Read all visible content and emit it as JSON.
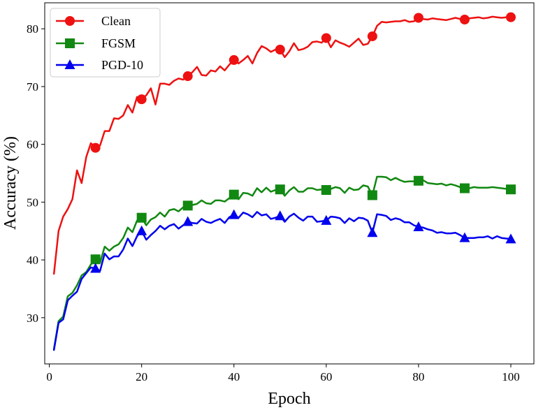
{
  "chart_data": {
    "type": "line",
    "xlabel": "Epoch",
    "ylabel": "Accuracy (%)",
    "xlim": [
      -1,
      105
    ],
    "ylim": [
      22.0,
      84.5
    ],
    "xticks": [
      "0",
      "20",
      "40",
      "60",
      "80",
      "100"
    ],
    "yticks": [
      "30",
      "40",
      "50",
      "60",
      "70",
      "80"
    ],
    "grid": false,
    "legend": "top-left",
    "series": [
      {
        "name": "Clean",
        "color": "#ee1111",
        "marker": "circle",
        "x": [
          1,
          2,
          3,
          4,
          5,
          6,
          7,
          8,
          9,
          10,
          11,
          12,
          13,
          14,
          15,
          16,
          17,
          18,
          19,
          20,
          21,
          22,
          23,
          24,
          25,
          26,
          27,
          28,
          29,
          30,
          31,
          32,
          33,
          34,
          35,
          36,
          37,
          38,
          39,
          40,
          41,
          42,
          43,
          44,
          45,
          46,
          47,
          48,
          49,
          50,
          51,
          52,
          53,
          54,
          55,
          56,
          57,
          58,
          59,
          60,
          61,
          62,
          63,
          64,
          65,
          66,
          67,
          68,
          69,
          70,
          71,
          72,
          73,
          74,
          75,
          76,
          77,
          78,
          79,
          80,
          81,
          82,
          83,
          84,
          85,
          86,
          87,
          88,
          89,
          90,
          91,
          92,
          93,
          94,
          95,
          96,
          97,
          98,
          99,
          100
        ],
        "values": [
          37.6,
          45.0,
          47.5,
          48.8,
          50.5,
          55.5,
          53.3,
          57.8,
          60.2,
          59.4,
          59.8,
          62.3,
          62.3,
          64.5,
          64.4,
          65.0,
          66.8,
          65.5,
          68.2,
          67.8,
          68.5,
          69.7,
          66.9,
          70.5,
          70.5,
          70.3,
          71.0,
          71.4,
          71.2,
          71.8,
          72.5,
          73.4,
          72.0,
          71.9,
          72.8,
          72.6,
          73.5,
          72.8,
          73.8,
          74.6,
          74.0,
          74.6,
          75.3,
          74.0,
          75.8,
          77.0,
          76.6,
          76.0,
          76.4,
          76.4,
          75.1,
          76.1,
          77.5,
          76.3,
          76.5,
          76.9,
          77.7,
          77.8,
          77.6,
          78.4,
          76.8,
          78.0,
          77.6,
          77.3,
          76.9,
          77.6,
          78.3,
          77.2,
          77.4,
          78.7,
          80.5,
          81.2,
          81.1,
          81.2,
          81.3,
          81.3,
          81.5,
          81.2,
          81.3,
          81.9,
          81.7,
          81.6,
          81.8,
          81.7,
          81.6,
          81.5,
          81.7,
          81.9,
          81.7,
          81.6,
          81.8,
          81.9,
          82.0,
          81.8,
          81.9,
          82.1,
          82.0,
          81.9,
          82.0,
          82.0
        ]
      },
      {
        "name": "FGSM",
        "color": "#118811",
        "marker": "square",
        "x": [
          1,
          2,
          3,
          4,
          5,
          6,
          7,
          8,
          9,
          10,
          11,
          12,
          13,
          14,
          15,
          16,
          17,
          18,
          19,
          20,
          21,
          22,
          23,
          24,
          25,
          26,
          27,
          28,
          29,
          30,
          31,
          32,
          33,
          34,
          35,
          36,
          37,
          38,
          39,
          40,
          41,
          42,
          43,
          44,
          45,
          46,
          47,
          48,
          49,
          50,
          51,
          52,
          53,
          54,
          55,
          56,
          57,
          58,
          59,
          60,
          61,
          62,
          63,
          64,
          65,
          66,
          67,
          68,
          69,
          70,
          71,
          72,
          73,
          74,
          75,
          76,
          77,
          78,
          79,
          80,
          81,
          82,
          83,
          84,
          85,
          86,
          87,
          88,
          89,
          90,
          91,
          92,
          93,
          94,
          95,
          96,
          97,
          98,
          99,
          100
        ],
        "values": [
          24.6,
          29.4,
          30.2,
          33.7,
          34.3,
          35.6,
          37.3,
          37.9,
          39.2,
          40.1,
          39.5,
          42.3,
          41.6,
          42.3,
          42.7,
          43.8,
          45.6,
          44.8,
          46.8,
          47.3,
          46.0,
          47.0,
          47.4,
          48.2,
          47.5,
          48.6,
          48.8,
          48.4,
          49.1,
          49.4,
          49.5,
          49.7,
          50.3,
          49.8,
          49.7,
          50.3,
          50.3,
          50.1,
          50.7,
          51.3,
          50.5,
          51.6,
          51.5,
          51.1,
          52.4,
          51.7,
          52.5,
          51.8,
          52.1,
          52.2,
          51.1,
          52.0,
          52.6,
          51.8,
          51.8,
          52.4,
          52.4,
          52.1,
          52.2,
          52.1,
          52.3,
          52.6,
          52.4,
          51.6,
          52.5,
          52.1,
          52.2,
          52.9,
          52.7,
          51.2,
          54.4,
          54.4,
          54.3,
          53.8,
          54.2,
          53.8,
          53.5,
          53.6,
          53.6,
          53.7,
          53.8,
          53.3,
          53.2,
          53.1,
          53.2,
          52.9,
          53.1,
          52.9,
          52.6,
          52.4,
          52.4,
          52.6,
          52.5,
          52.5,
          52.5,
          52.6,
          52.5,
          52.4,
          52.3,
          52.2
        ]
      },
      {
        "name": "PGD-10",
        "color": "#0000ee",
        "marker": "triangle",
        "x": [
          1,
          2,
          3,
          4,
          5,
          6,
          7,
          8,
          9,
          10,
          11,
          12,
          13,
          14,
          15,
          16,
          17,
          18,
          19,
          20,
          21,
          22,
          23,
          24,
          25,
          26,
          27,
          28,
          29,
          30,
          31,
          32,
          33,
          34,
          35,
          36,
          37,
          38,
          39,
          40,
          41,
          42,
          43,
          44,
          45,
          46,
          47,
          48,
          49,
          50,
          51,
          52,
          53,
          54,
          55,
          56,
          57,
          58,
          59,
          60,
          61,
          62,
          63,
          64,
          65,
          66,
          67,
          68,
          69,
          70,
          71,
          72,
          73,
          74,
          75,
          76,
          77,
          78,
          79,
          80,
          81,
          82,
          83,
          84,
          85,
          86,
          87,
          88,
          89,
          90,
          91,
          92,
          93,
          94,
          95,
          96,
          97,
          98,
          99,
          100
        ],
        "values": [
          24.4,
          29.1,
          29.7,
          33.0,
          33.8,
          34.5,
          36.7,
          37.7,
          38.7,
          38.5,
          38.1,
          41.1,
          40.1,
          40.6,
          40.6,
          41.8,
          43.7,
          42.4,
          44.1,
          45.0,
          43.5,
          44.3,
          45.0,
          45.9,
          45.3,
          45.9,
          46.2,
          45.4,
          46.0,
          46.6,
          46.4,
          46.3,
          47.1,
          46.6,
          46.4,
          46.8,
          47.1,
          46.4,
          47.4,
          47.8,
          47.3,
          48.2,
          47.9,
          47.4,
          48.3,
          47.7,
          47.9,
          47.1,
          47.3,
          47.6,
          46.6,
          47.5,
          48.0,
          47.3,
          46.8,
          47.5,
          47.5,
          46.6,
          46.7,
          46.8,
          47.5,
          47.4,
          47.2,
          46.4,
          47.2,
          46.7,
          47.3,
          47.2,
          46.8,
          44.7,
          47.9,
          47.8,
          47.6,
          46.9,
          47.2,
          47.0,
          46.5,
          46.5,
          46.0,
          45.7,
          45.6,
          45.3,
          45.1,
          44.7,
          44.8,
          44.6,
          44.6,
          44.7,
          44.3,
          43.8,
          43.8,
          43.8,
          43.9,
          43.9,
          44.1,
          43.7,
          44.1,
          43.8,
          43.7,
          43.6
        ]
      }
    ],
    "markers_at_x": [
      10,
      20,
      30,
      40,
      50,
      60,
      70,
      80,
      90,
      100
    ]
  }
}
